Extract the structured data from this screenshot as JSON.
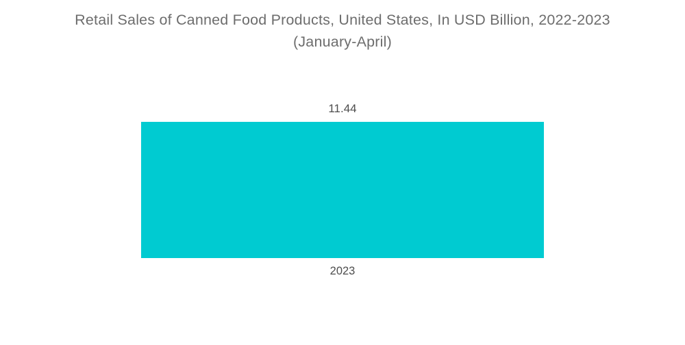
{
  "header": {
    "title_line1": "Retail Sales of Canned Food Products, United States, In USD Billion, 2022-2023",
    "title_line2": "(January-April)"
  },
  "chart_data": {
    "type": "bar",
    "title": "Retail Sales of Canned Food Products, United States, In USD Billion, 2022-2023 (January-April)",
    "categories": [
      "2023"
    ],
    "values": [
      11.44
    ],
    "value_labels": [
      "11.44"
    ],
    "xlabel": "",
    "ylabel": "",
    "ylim": [
      0,
      11.44
    ],
    "grid": false,
    "legend": false,
    "bar_color": "#00cbd1",
    "title_color": "#6d6d6d",
    "label_color": "#4d4d4d",
    "background": "#ffffff"
  }
}
